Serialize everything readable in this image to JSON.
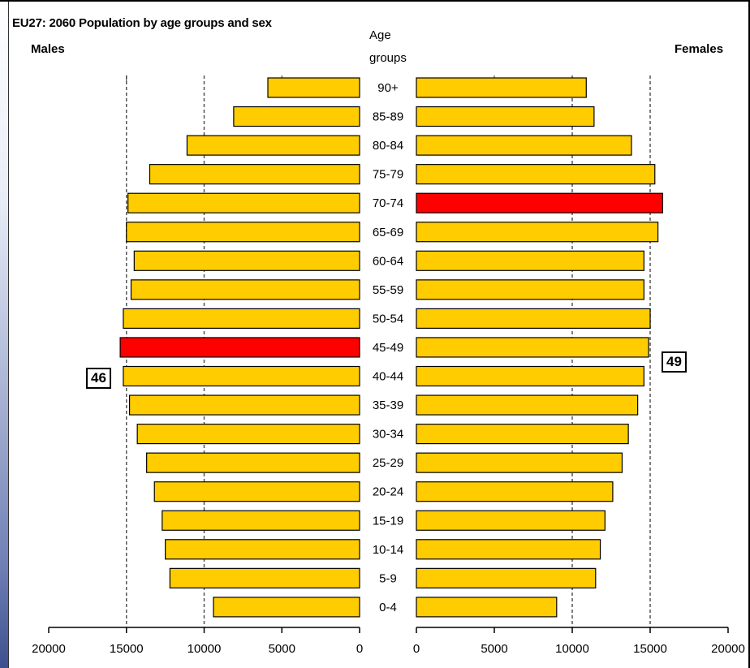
{
  "chart_data": {
    "type": "bar",
    "title": "EU27: 2060 Population by age groups and sex",
    "left_label": "Males",
    "right_label": "Females",
    "category_header_line1": "Age",
    "category_header_line2": "groups",
    "categories": [
      "90+",
      "85-89",
      "80-84",
      "75-79",
      "70-74",
      "65-69",
      "60-64",
      "55-59",
      "50-54",
      "45-49",
      "40-44",
      "35-39",
      "30-34",
      "25-29",
      "20-24",
      "15-19",
      "10-14",
      "5-9",
      "0-4"
    ],
    "series": [
      {
        "name": "Males",
        "values": [
          5900,
          8100,
          11100,
          13500,
          14900,
          15000,
          14500,
          14700,
          15200,
          15400,
          15200,
          14800,
          14300,
          13700,
          13200,
          12700,
          12500,
          12200,
          9400
        ]
      },
      {
        "name": "Females",
        "values": [
          10900,
          11400,
          13800,
          15300,
          15800,
          15500,
          14600,
          14600,
          15000,
          14900,
          14600,
          14200,
          13600,
          13200,
          12600,
          12100,
          11800,
          11500,
          9000
        ]
      }
    ],
    "highlighted": [
      {
        "series": "Males",
        "category": "45-49"
      },
      {
        "series": "Females",
        "category": "70-74"
      }
    ],
    "xlim": [
      0,
      20000
    ],
    "x_ticks": [
      0,
      5000,
      10000,
      15000,
      20000
    ],
    "x_tick_labels": [
      "0",
      "5000",
      "10000",
      "15000",
      "20000"
    ],
    "reference_lines": [
      10000,
      15000
    ],
    "colors": {
      "bar": "#FFCC00",
      "highlight": "#FF0000",
      "outline": "#000000",
      "gridline": "#555555"
    },
    "annotations": {
      "left_box": "46",
      "right_box": "49"
    }
  }
}
